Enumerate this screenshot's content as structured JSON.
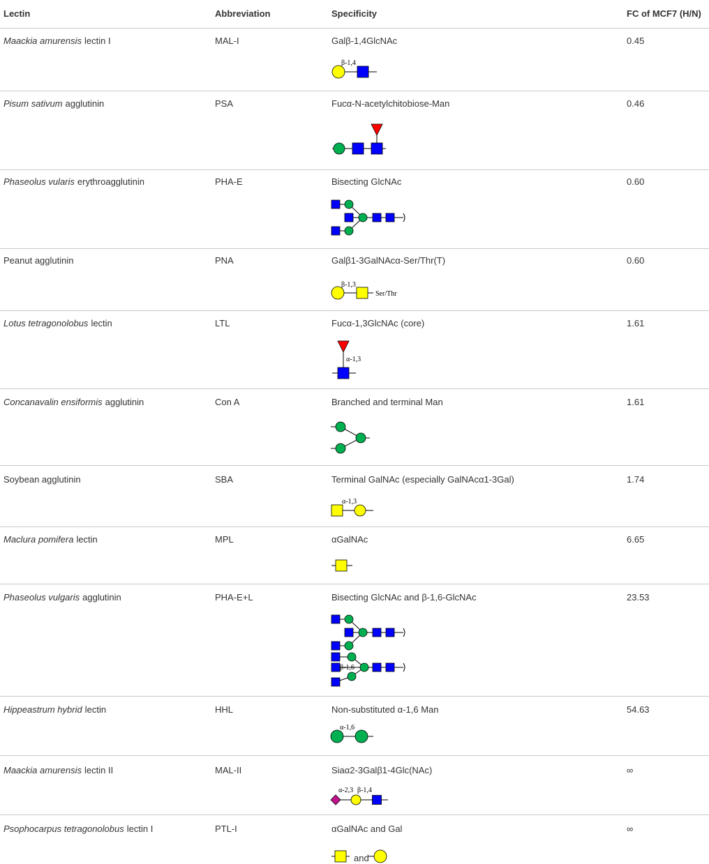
{
  "table": {
    "header": [
      "Lectin",
      "Abbreviation",
      "Specificity",
      "FC of MCF7 (H/N)"
    ],
    "rows": [
      {
        "lectin_italic": "Maackia amurensis",
        "lectin": "lectin I",
        "abbreviation": "MAL-I",
        "specificity": "Galβ-1,4GlcNAc",
        "fc": "0.45",
        "glycan_labels": [
          "β-1,4"
        ]
      },
      {
        "lectin_italic": "Pisum sativum",
        "lectin": "agglutinin",
        "abbreviation": "PSA",
        "specificity": "Fucα-N-acetylchitobiose-Man",
        "fc": "0.46"
      },
      {
        "lectin_italic": "Phaseolus vularis",
        "lectin": "erythroagglutinin",
        "abbreviation": "PHA-E",
        "specificity": "Bisecting GlcNAc",
        "fc": "0.60"
      },
      {
        "lectin": "Peanut agglutinin",
        "abbreviation": "PNA",
        "specificity": "Galβ1-3GalNAcα-Ser/Thr(T)",
        "fc": "0.60",
        "glycan_labels": [
          "β-1,3",
          "Ser/Thr"
        ]
      },
      {
        "lectin_italic": "Lotus tetragonolobus",
        "lectin": "lectin",
        "abbreviation": "LTL",
        "specificity": "Fucα-1,3GlcNAc (core)",
        "fc": "1.61",
        "glycan_labels": [
          "α-1,3"
        ]
      },
      {
        "lectin_italic": "Concanavalin ensiformis",
        "lectin": "agglutinin",
        "abbreviation": "Con A",
        "specificity": "Branched and terminal Man",
        "fc": "1.61"
      },
      {
        "lectin": "Soybean agglutinin",
        "abbreviation": "SBA",
        "specificity": "Terminal GalNAc (especially GalNAcα1-3Gal)",
        "fc": "1.74",
        "glycan_labels": [
          "α-1,3"
        ]
      },
      {
        "lectin_italic": "Maclura pomifera",
        "lectin": "lectin",
        "abbreviation": "MPL",
        "specificity": "αGalNAc",
        "fc": "6.65"
      },
      {
        "lectin_italic": "Phaseolus vulgaris",
        "lectin": "agglutinin",
        "abbreviation": "PHA-E+L",
        "specificity": "Bisecting GlcNAc and β-1,6-GlcNAc",
        "fc": "23.53",
        "glycan_labels": [
          "β-1,6"
        ]
      },
      {
        "lectin_italic": "Hippeastrum hybrid",
        "lectin": "lectin",
        "abbreviation": "HHL",
        "specificity": "Non-substituted α-1,6 Man",
        "fc": "54.63",
        "glycan_labels": [
          "α-1,6"
        ]
      },
      {
        "lectin_italic": "Maackia amurensis",
        "lectin": "lectin II",
        "abbreviation": "MAL-II",
        "specificity": "Siaα2-3Galβ1-4Glc(NAc)",
        "fc": "∞",
        "glycan_labels": [
          "α-2,3",
          "β-1,4"
        ]
      },
      {
        "lectin_italic": "Psophocarpus tetragonolobus",
        "lectin": "lectin I",
        "abbreviation": "PTL-I",
        "specificity": "αGalNAc and Gal",
        "fc": "∞",
        "glycan_labels": [
          "and"
        ]
      }
    ]
  }
}
